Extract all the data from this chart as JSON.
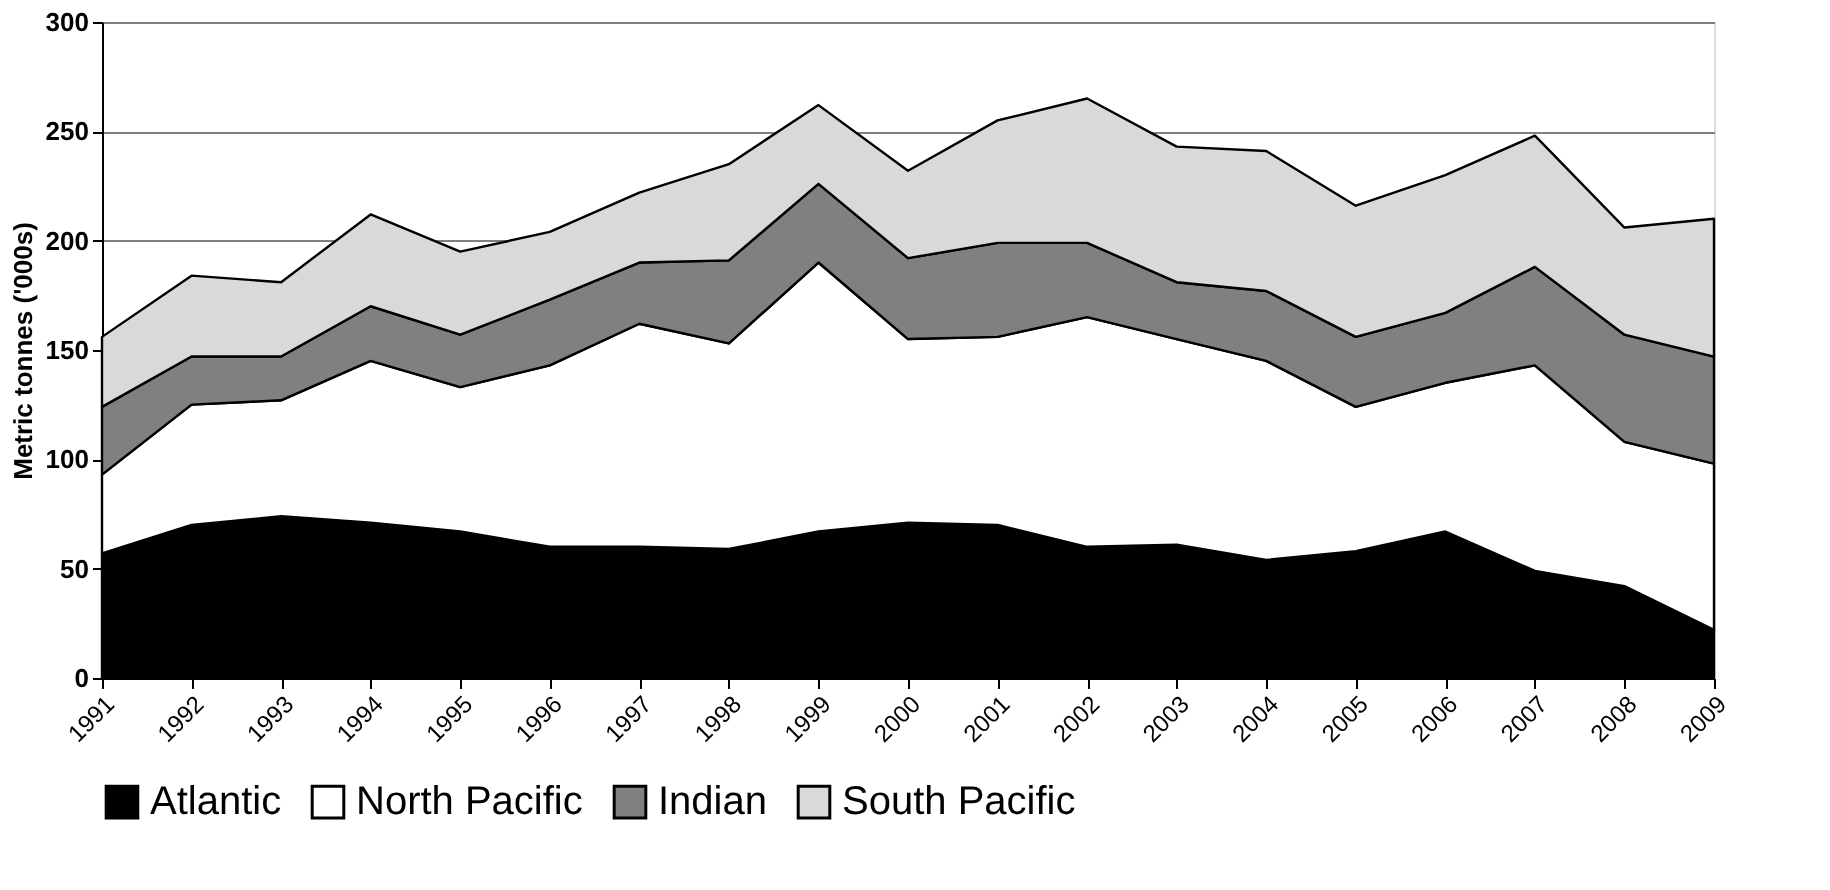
{
  "chart_data": {
    "type": "area",
    "stacked": true,
    "ylabel": "Metric tonnes ('000s)",
    "categories": [
      "1991",
      "1992",
      "1993",
      "1994",
      "1995",
      "1996",
      "1997",
      "1998",
      "1999",
      "2000",
      "2001",
      "2002",
      "2003",
      "2004",
      "2005",
      "2006",
      "2007",
      "2008",
      "2009"
    ],
    "series": [
      {
        "name": "Atlantic",
        "color": "#000000",
        "values": [
          57,
          70,
          74,
          71,
          67,
          60,
          60,
          59,
          67,
          71,
          70,
          60,
          61,
          54,
          58,
          67,
          49,
          42,
          22
        ]
      },
      {
        "name": "North Pacific",
        "color": "#ffffff",
        "values": [
          36,
          55,
          53,
          74,
          66,
          83,
          102,
          94,
          123,
          84,
          86,
          105,
          94,
          91,
          66,
          68,
          94,
          66,
          76
        ]
      },
      {
        "name": "Indian",
        "color": "#808080",
        "values": [
          31,
          22,
          20,
          25,
          24,
          30,
          28,
          38,
          36,
          37,
          43,
          34,
          26,
          32,
          32,
          32,
          45,
          49,
          49
        ]
      },
      {
        "name": "South Pacific",
        "color": "#d9d9d9",
        "values": [
          32,
          37,
          34,
          42,
          38,
          31,
          32,
          44,
          36,
          40,
          56,
          66,
          62,
          64,
          60,
          63,
          60,
          49,
          63
        ]
      }
    ],
    "ylim": [
      0,
      300
    ],
    "yticks": [
      0,
      50,
      100,
      150,
      200,
      250,
      300
    ],
    "grid": "y",
    "legend": "bottom"
  }
}
